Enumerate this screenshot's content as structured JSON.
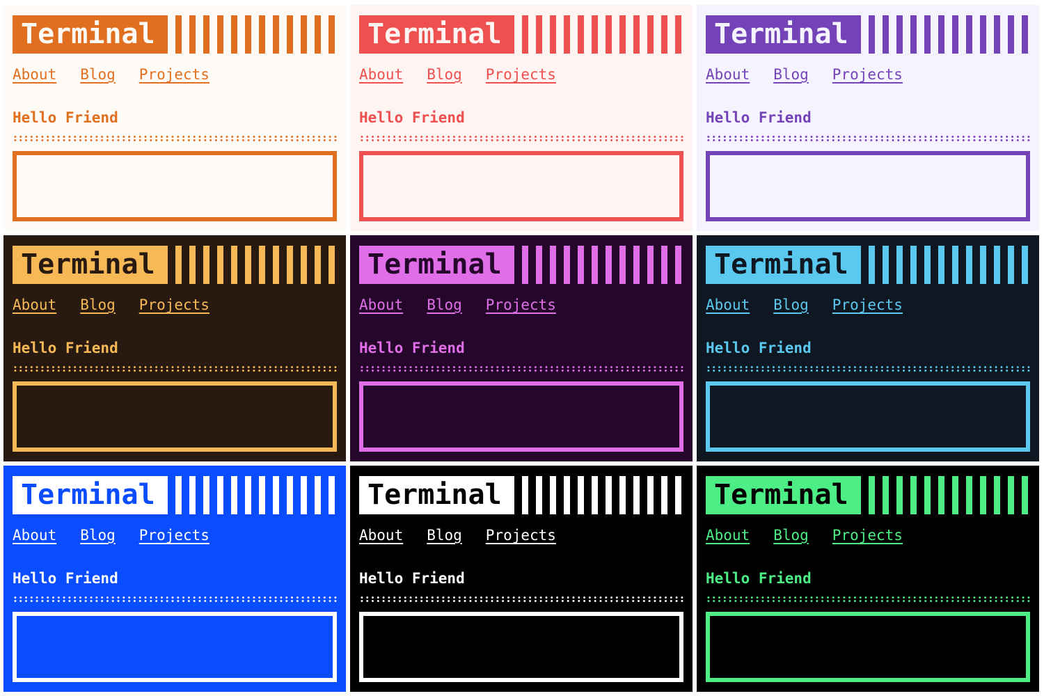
{
  "logo_text": "Terminal",
  "nav": [
    "About",
    "Blog",
    "Projects"
  ],
  "heading": "Hello Friend",
  "themes": [
    {
      "bg": "#fefaf5",
      "accent": "#e07020"
    },
    {
      "bg": "#fef5f3",
      "accent": "#ee4f4f"
    },
    {
      "bg": "#f5f3fe",
      "accent": "#7443b8"
    },
    {
      "bg": "#281a10",
      "accent": "#f7b955"
    },
    {
      "bg": "#26072c",
      "accent": "#e06ee8"
    },
    {
      "bg": "#0f1822",
      "accent": "#5ac8ef"
    },
    {
      "bg": "#0a4cff",
      "accent": "#ffffff"
    },
    {
      "bg": "#000000",
      "accent": "#ffffff"
    },
    {
      "bg": "#000000",
      "accent": "#4eee86"
    }
  ]
}
